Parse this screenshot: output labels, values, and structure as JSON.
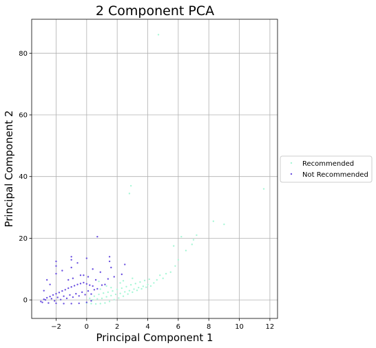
{
  "chart_data": {
    "type": "scatter",
    "title": "2 Component PCA",
    "xlabel": "Principal Component 1",
    "ylabel": "Principal Component 2",
    "xlim": [
      -3.6,
      12.5
    ],
    "ylim": [
      -6,
      91
    ],
    "xticks": [
      -2,
      0,
      2,
      4,
      6,
      8,
      10,
      12
    ],
    "xtick_labels": [
      "−2",
      "0",
      "2",
      "4",
      "6",
      "8",
      "10",
      "12"
    ],
    "yticks": [
      0,
      20,
      40,
      60,
      80
    ],
    "ytick_labels": [
      "0",
      "20",
      "40",
      "60",
      "80"
    ],
    "grid": true,
    "legend_position": "center-right outside",
    "series": [
      {
        "name": "Recommended",
        "color": "#a7f7d6",
        "points": [
          [
            0.0,
            -1.0
          ],
          [
            0.3,
            -1.2
          ],
          [
            0.6,
            -1.3
          ],
          [
            0.9,
            -1.2
          ],
          [
            1.2,
            -1.0
          ],
          [
            1.5,
            -0.5
          ],
          [
            1.8,
            0.1
          ],
          [
            2.1,
            0.6
          ],
          [
            2.4,
            1.2
          ],
          [
            2.7,
            1.9
          ],
          [
            3.0,
            2.5
          ],
          [
            3.3,
            3.1
          ],
          [
            3.6,
            3.6
          ],
          [
            3.9,
            4.1
          ],
          [
            4.2,
            4.5
          ],
          [
            0.2,
            0.5
          ],
          [
            0.5,
            1.2
          ],
          [
            0.8,
            1.8
          ],
          [
            1.1,
            2.2
          ],
          [
            1.4,
            2.5
          ],
          [
            1.7,
            2.9
          ],
          [
            2.0,
            3.4
          ],
          [
            2.3,
            3.8
          ],
          [
            2.6,
            4.3
          ],
          [
            2.9,
            4.9
          ],
          [
            3.2,
            5.3
          ],
          [
            3.5,
            5.8
          ],
          [
            3.8,
            6.3
          ],
          [
            4.1,
            6.7
          ],
          [
            0.4,
            0.0
          ],
          [
            0.7,
            0.3
          ],
          [
            1.0,
            0.5
          ],
          [
            1.3,
            1.0
          ],
          [
            1.6,
            1.4
          ],
          [
            1.9,
            1.8
          ],
          [
            2.2,
            2.1
          ],
          [
            2.5,
            2.6
          ],
          [
            2.8,
            3.0
          ],
          [
            3.1,
            3.5
          ],
          [
            3.4,
            4.0
          ],
          [
            3.7,
            4.4
          ],
          [
            4.0,
            5.0
          ],
          [
            4.4,
            5.5
          ],
          [
            4.6,
            6.5
          ],
          [
            5.0,
            7.0
          ],
          [
            5.2,
            8.5
          ],
          [
            5.5,
            9.0
          ],
          [
            5.8,
            11.0
          ],
          [
            6.0,
            13.0
          ],
          [
            6.5,
            16.0
          ],
          [
            6.9,
            18.0
          ],
          [
            7.0,
            19.5
          ],
          [
            5.7,
            17.5
          ],
          [
            6.2,
            20.5
          ],
          [
            7.2,
            21.0
          ],
          [
            8.3,
            25.5
          ],
          [
            9.0,
            24.5
          ],
          [
            2.8,
            34.5
          ],
          [
            2.9,
            37.0
          ],
          [
            4.7,
            86.0
          ],
          [
            11.6,
            36.0
          ],
          [
            0.9,
            3.5
          ],
          [
            1.3,
            4.5
          ],
          [
            2.4,
            6.2
          ],
          [
            3.0,
            7.0
          ],
          [
            0.8,
            6.0
          ],
          [
            1.6,
            4.0
          ],
          [
            2.2,
            5.5
          ],
          [
            4.8,
            8.0
          ]
        ]
      },
      {
        "name": "Not Recommended",
        "color": "#6a4fe0",
        "points": [
          [
            -3.0,
            -0.5
          ],
          [
            -2.8,
            0.2
          ],
          [
            -2.6,
            0.7
          ],
          [
            -2.4,
            1.1
          ],
          [
            -2.2,
            1.6
          ],
          [
            -2.0,
            2.0
          ],
          [
            -1.8,
            2.4
          ],
          [
            -1.6,
            2.9
          ],
          [
            -1.4,
            3.3
          ],
          [
            -1.2,
            3.8
          ],
          [
            -1.0,
            4.2
          ],
          [
            -0.8,
            4.6
          ],
          [
            -0.6,
            5.0
          ],
          [
            -0.4,
            5.3
          ],
          [
            -0.2,
            5.6
          ],
          [
            0.0,
            5.2
          ],
          [
            0.2,
            4.8
          ],
          [
            0.4,
            4.5
          ],
          [
            -2.9,
            -0.8
          ],
          [
            -2.5,
            -1.0
          ],
          [
            -2.0,
            -1.1
          ],
          [
            -1.5,
            -1.2
          ],
          [
            -1.0,
            -1.2
          ],
          [
            -0.5,
            -1.1
          ],
          [
            0.0,
            -0.8
          ],
          [
            0.3,
            -0.3
          ],
          [
            -2.7,
            0.0
          ],
          [
            -2.3,
            0.4
          ],
          [
            -1.9,
            0.8
          ],
          [
            -1.5,
            1.2
          ],
          [
            -1.1,
            1.6
          ],
          [
            -0.7,
            2.0
          ],
          [
            -0.3,
            2.5
          ],
          [
            0.1,
            2.9
          ],
          [
            0.5,
            3.3
          ],
          [
            -2.1,
            -0.3
          ],
          [
            -1.7,
            0.1
          ],
          [
            -1.3,
            0.5
          ],
          [
            -0.9,
            0.9
          ],
          [
            -0.5,
            1.3
          ],
          [
            -0.1,
            1.7
          ],
          [
            0.3,
            1.9
          ],
          [
            0.7,
            3.6
          ],
          [
            1.0,
            4.8
          ],
          [
            1.2,
            5.0
          ],
          [
            -1.2,
            6.5
          ],
          [
            -0.9,
            7.0
          ],
          [
            -0.4,
            8.0
          ],
          [
            0.1,
            7.5
          ],
          [
            0.6,
            6.5
          ],
          [
            1.4,
            6.8
          ],
          [
            1.8,
            7.5
          ],
          [
            2.3,
            8.3
          ],
          [
            -2.0,
            8.5
          ],
          [
            -1.6,
            9.5
          ],
          [
            -1.0,
            10.5
          ],
          [
            -0.6,
            12.0
          ],
          [
            -2.4,
            5.0
          ],
          [
            -2.6,
            6.5
          ],
          [
            -2.0,
            11.0
          ],
          [
            -2.0,
            12.5
          ],
          [
            -1.0,
            14.0
          ],
          [
            -1.0,
            13.0
          ],
          [
            0.0,
            13.5
          ],
          [
            0.4,
            10.0
          ],
          [
            1.5,
            12.5
          ],
          [
            1.5,
            14.0
          ],
          [
            1.6,
            10.5
          ],
          [
            2.5,
            11.5
          ],
          [
            0.7,
            20.5
          ],
          [
            -0.2,
            8.0
          ],
          [
            0.9,
            9.0
          ],
          [
            -2.8,
            3.0
          ]
        ]
      }
    ]
  }
}
